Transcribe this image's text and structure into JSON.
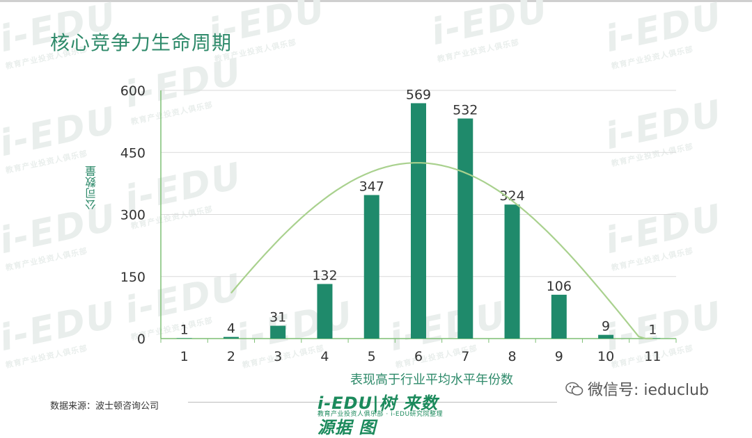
{
  "header": {
    "title": "核心竞争力生命周期"
  },
  "watermark": {
    "main": "i-EDU",
    "sub": "教育产业投资人俱乐部"
  },
  "chart_data": {
    "type": "bar",
    "categories": [
      "1",
      "2",
      "3",
      "4",
      "5",
      "6",
      "7",
      "8",
      "9",
      "10",
      "11"
    ],
    "values": [
      1,
      4,
      31,
      132,
      347,
      569,
      532,
      324,
      106,
      9,
      1
    ],
    "ylim": [
      0,
      600
    ],
    "yticks": [
      0,
      150,
      300,
      450,
      600
    ],
    "xlabel": "表现高于行业平均水平年份数",
    "ylabel": "公司数量",
    "grid": true,
    "trend_curve": true,
    "colors": {
      "bar": "#1f8a6b",
      "curve": "#a9d18e",
      "axis": "#7dbf74"
    }
  },
  "footer": {
    "source": "数据来源：波士顿咨询公司",
    "logo_main": "i-EDU|树 来数 源据 图",
    "logo_sub": "教育产业投资人俱乐部 · i-EDU研究院整理",
    "wechat": "微信号: ieduclub"
  }
}
